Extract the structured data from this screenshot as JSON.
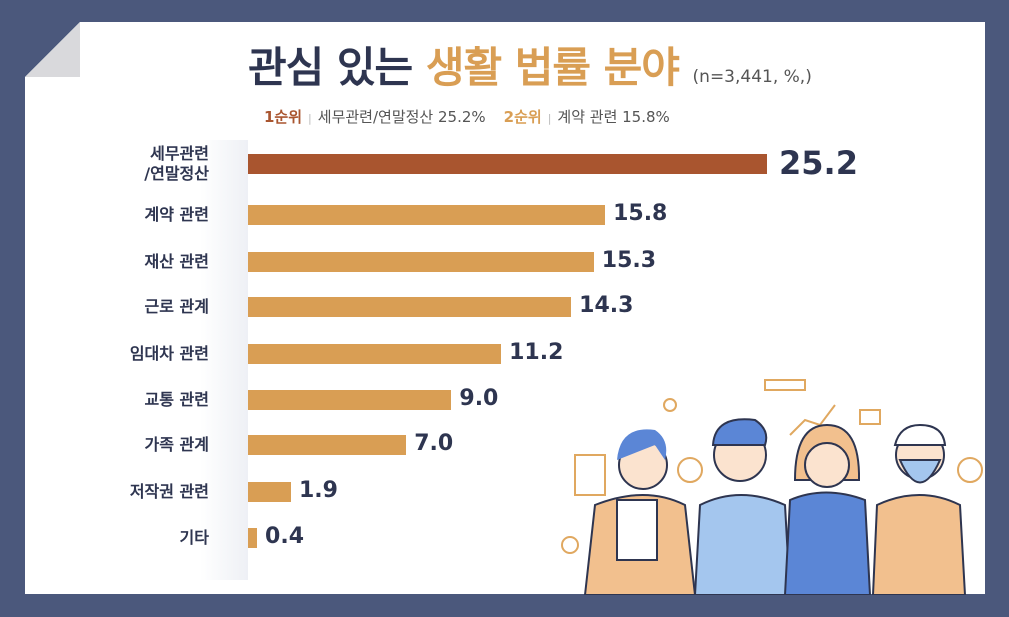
{
  "chart_data": {
    "type": "bar",
    "orientation": "horizontal",
    "title_part1": "관심 있는",
    "title_part2": "생활 법률 분야",
    "note": "(n=3,441, %,)",
    "rank1": {
      "label": "1순위",
      "text": "세무관련/연말정산 25.2%"
    },
    "rank2": {
      "label": "2순위",
      "text": "계약 관련 15.8%"
    },
    "categories": [
      "세무관련\n/연말정산",
      "계약 관련",
      "재산 관련",
      "근로 관계",
      "임대차 관련",
      "교통 관련",
      "가족 관계",
      "저작권 관련",
      "기타"
    ],
    "values": [
      25.2,
      15.8,
      15.3,
      14.3,
      11.2,
      9.0,
      7.0,
      1.9,
      0.4
    ],
    "value_labels": [
      "25.2",
      "15.8",
      "15.3",
      "14.3",
      "11.2",
      "9.0",
      "7.0",
      "1.9",
      "0.4"
    ],
    "colors": {
      "highlight": "#a9552f",
      "bar": "#d99e54",
      "text": "#2e3550"
    },
    "grid": false
  }
}
